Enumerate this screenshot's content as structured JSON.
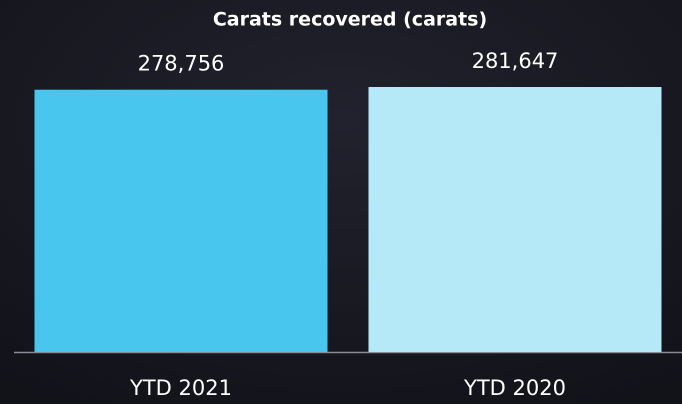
{
  "chart_data": {
    "type": "bar",
    "title": "Carats recovered (carats)",
    "categories": [
      "YTD 2021",
      "YTD 2020"
    ],
    "values": [
      278756,
      281647
    ],
    "value_labels": [
      "278,756",
      "281,647"
    ],
    "colors": [
      "#48c6ee",
      "#b5e9f8"
    ]
  }
}
